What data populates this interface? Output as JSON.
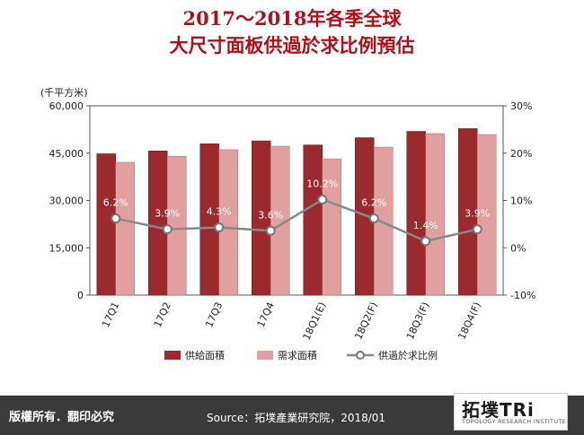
{
  "title_line1": "2017～2018年各季全球",
  "title_line2": "大尺寸面板供過於求比例預估",
  "footer": {
    "rights": "版權所有．翻印必究",
    "source": "Source：拓墣產業研究院，2018/01",
    "logo_main": "拓墣TRi",
    "logo_sub": "TOPOLOGY RESEARCH INSTITUTE"
  },
  "chart_data": {
    "type": "bar",
    "unit_label": "(千平方米)",
    "categories": [
      "17Q1",
      "17Q2",
      "17Q3",
      "17Q4",
      "18Q1(E)",
      "18Q2(F)",
      "18Q3(F)",
      "18Q4(F)"
    ],
    "y_left": {
      "min": 0,
      "max": 60000,
      "ticks": [
        "0",
        "15,000",
        "30,000",
        "45,000",
        "60,000"
      ]
    },
    "y_right": {
      "min": -10,
      "max": 30,
      "ticks": [
        "-10%",
        "0%",
        "10%",
        "20%",
        "30%"
      ]
    },
    "series": [
      {
        "name": "供給面積",
        "axis": "left",
        "kind": "bar",
        "color": "#9b2a2e",
        "values": [
          44800,
          45700,
          48000,
          48900,
          47600,
          49900,
          51900,
          52800
        ]
      },
      {
        "name": "需求面積",
        "axis": "left",
        "kind": "bar",
        "color": "#e0a0a0",
        "values": [
          42100,
          44000,
          46100,
          47200,
          43200,
          46900,
          51200,
          50900
        ]
      },
      {
        "name": "供過於求比例",
        "axis": "right",
        "kind": "line",
        "color": "#888888",
        "values": [
          6.2,
          3.9,
          4.3,
          3.6,
          10.2,
          6.2,
          1.4,
          3.9
        ],
        "labels": [
          "6.2%",
          "3.9%",
          "4.3%",
          "3.6%",
          "10.2%",
          "6.2%",
          "1.4%",
          "3.9%"
        ]
      }
    ],
    "grid": false,
    "legend_position": "bottom"
  }
}
